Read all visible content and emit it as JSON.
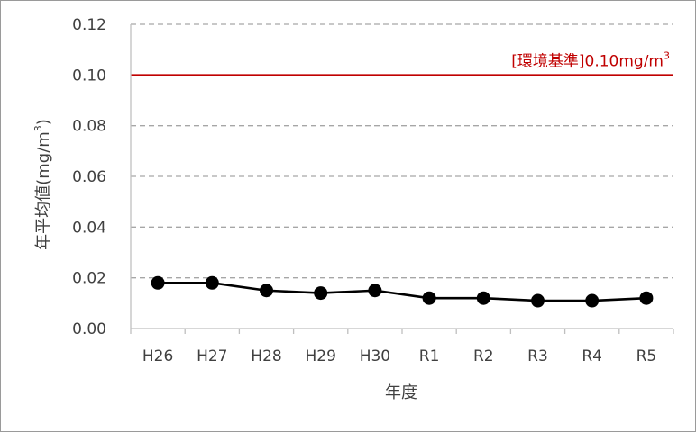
{
  "chart_data": {
    "type": "line",
    "categories": [
      "H26",
      "H27",
      "H28",
      "H29",
      "H30",
      "R1",
      "R2",
      "R3",
      "R4",
      "R5"
    ],
    "series": [
      {
        "values": [
          0.018,
          0.018,
          0.015,
          0.014,
          0.015,
          0.012,
          0.012,
          0.011,
          0.011,
          0.012
        ]
      }
    ],
    "xlabel": "年度",
    "ylabel": "年平均値(mg/m3)",
    "ylabel_main": "年平均値(mg/m",
    "ylabel_sup": "3",
    "ylabel_close": ")",
    "ylim": [
      0,
      0.12
    ],
    "yticks": [
      "0.00",
      "0.02",
      "0.04",
      "0.06",
      "0.08",
      "0.10",
      "0.12"
    ],
    "grid": true,
    "reference_line": {
      "value": 0.1,
      "label_main": "[環境基準]0.10mg/m",
      "label_sup": "3",
      "color": "#c00000"
    },
    "colors": {
      "series": "#000000",
      "grid": "#a6a6a6",
      "axis": "#bfbfbf",
      "text": "#404040"
    }
  }
}
